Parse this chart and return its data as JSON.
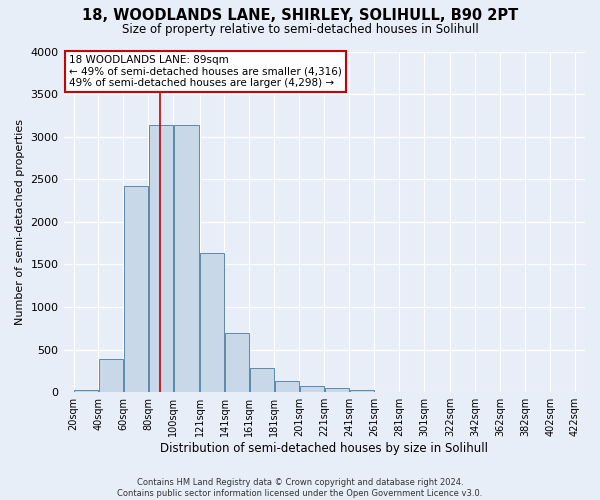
{
  "title": "18, WOODLANDS LANE, SHIRLEY, SOLIHULL, B90 2PT",
  "subtitle": "Size of property relative to semi-detached houses in Solihull",
  "xlabel": "Distribution of semi-detached houses by size in Solihull",
  "ylabel": "Number of semi-detached properties",
  "bin_labels": [
    "20sqm",
    "40sqm",
    "60sqm",
    "80sqm",
    "100sqm",
    "121sqm",
    "141sqm",
    "161sqm",
    "181sqm",
    "201sqm",
    "221sqm",
    "241sqm",
    "261sqm",
    "281sqm",
    "301sqm",
    "322sqm",
    "342sqm",
    "362sqm",
    "382sqm",
    "402sqm",
    "422sqm"
  ],
  "bin_edges": [
    20,
    40,
    60,
    80,
    100,
    121,
    141,
    161,
    181,
    201,
    221,
    241,
    261,
    281,
    301,
    322,
    342,
    362,
    382,
    402,
    422
  ],
  "bar_heights": [
    30,
    390,
    2420,
    3140,
    3140,
    1640,
    690,
    290,
    130,
    70,
    45,
    25,
    0,
    0,
    0,
    0,
    0,
    0,
    0,
    0
  ],
  "bar_color": "#c8d8e8",
  "bar_edge_color": "#5a8aaa",
  "vline_color": "#cc0000",
  "vline_x": 89,
  "annotation_title": "18 WOODLANDS LANE: 89sqm",
  "annotation_line1": "← 49% of semi-detached houses are smaller (4,316)",
  "annotation_line2": "49% of semi-detached houses are larger (4,298) →",
  "annotation_box_color": "#ffffff",
  "annotation_box_edge": "#cc0000",
  "ylim": [
    0,
    4000
  ],
  "yticks": [
    0,
    500,
    1000,
    1500,
    2000,
    2500,
    3000,
    3500,
    4000
  ],
  "background_color": "#e8eef8",
  "footnote1": "Contains HM Land Registry data © Crown copyright and database right 2024.",
  "footnote2": "Contains public sector information licensed under the Open Government Licence v3.0."
}
